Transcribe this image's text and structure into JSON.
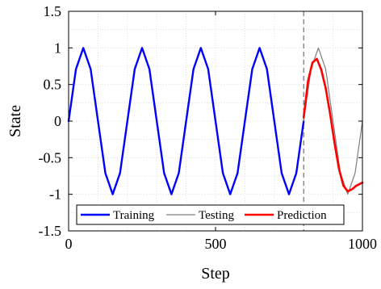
{
  "chart_data": {
    "type": "line",
    "title": "",
    "xlabel": "Step",
    "ylabel": "State",
    "xlim": [
      0,
      1000
    ],
    "ylim": [
      -1.5,
      1.5
    ],
    "xticks": [
      0,
      500,
      1000
    ],
    "xtick_labels": [
      "0",
      "500",
      "1000"
    ],
    "yticks": [
      -1.5,
      -1,
      -0.5,
      0,
      0.5,
      1,
      1.5
    ],
    "ytick_labels": [
      "-1.5",
      "-1",
      "-0.5",
      "0",
      "0.5",
      "1",
      "1.5"
    ],
    "grid": "dotted",
    "legend_position": "bottom",
    "split_marker_x": 800,
    "series": [
      {
        "name": "Training",
        "color": "#0000ff",
        "x": [
          0,
          25,
          50,
          75,
          100,
          125,
          150,
          175,
          200,
          225,
          250,
          275,
          300,
          325,
          350,
          375,
          400,
          425,
          450,
          475,
          500,
          525,
          550,
          575,
          600,
          625,
          650,
          675,
          700,
          725,
          750,
          775,
          800
        ],
        "y": [
          0.0,
          0.71,
          1.0,
          0.71,
          0.0,
          -0.71,
          -1.0,
          -0.71,
          0.0,
          0.71,
          1.0,
          0.71,
          0.0,
          -0.71,
          -1.0,
          -0.71,
          0.0,
          0.71,
          1.0,
          0.71,
          0.0,
          -0.71,
          -1.0,
          -0.71,
          0.0,
          0.71,
          1.0,
          0.71,
          0.0,
          -0.71,
          -1.0,
          -0.71,
          0.0
        ]
      },
      {
        "name": "Testing",
        "color": "#808080",
        "x": [
          800,
          825,
          850,
          875,
          900,
          925,
          950,
          975,
          1000
        ],
        "y": [
          0.0,
          0.71,
          1.0,
          0.71,
          0.0,
          -0.71,
          -1.0,
          -0.71,
          0.0
        ]
      },
      {
        "name": "Prediction",
        "color": "#ff0000",
        "x": [
          800,
          815,
          830,
          845,
          860,
          875,
          890,
          905,
          920,
          935,
          950,
          965,
          980,
          1000
        ],
        "y": [
          0.05,
          0.55,
          0.8,
          0.85,
          0.7,
          0.45,
          0.1,
          -0.3,
          -0.65,
          -0.88,
          -0.96,
          -0.93,
          -0.88,
          -0.84
        ]
      }
    ]
  }
}
